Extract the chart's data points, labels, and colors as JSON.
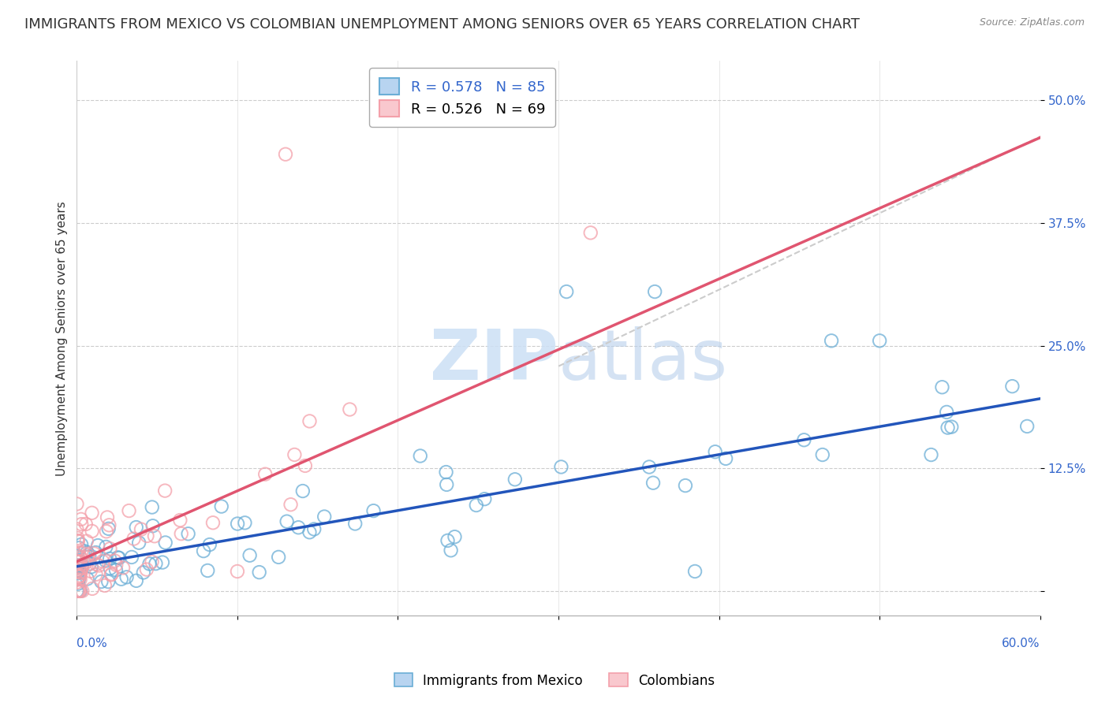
{
  "title": "IMMIGRANTS FROM MEXICO VS COLOMBIAN UNEMPLOYMENT AMONG SENIORS OVER 65 YEARS CORRELATION CHART",
  "source": "Source: ZipAtlas.com",
  "ylabel": "Unemployment Among Seniors over 65 years",
  "yticks": [
    0.0,
    0.125,
    0.25,
    0.375,
    0.5
  ],
  "ytick_labels": [
    "",
    "12.5%",
    "25.0%",
    "37.5%",
    "50.0%"
  ],
  "xlim": [
    0.0,
    0.6
  ],
  "ylim": [
    -0.025,
    0.54
  ],
  "background_color": "#ffffff",
  "grid_color": "#cccccc",
  "title_fontsize": 13,
  "axis_label_fontsize": 11,
  "tick_fontsize": 11,
  "mexico_color": "#6baed6",
  "mexico_line_color": "#2255bb",
  "colombian_color": "#f4a0aa",
  "colombian_line_color": "#e05570",
  "dash_color": "#cccccc",
  "mexico_slope": 0.285,
  "mexico_intercept": 0.025,
  "colombian_slope": 0.72,
  "colombian_intercept": 0.03,
  "dash_slope": 0.78,
  "dash_intercept": -0.005,
  "dash_xstart": 0.3,
  "watermark_zip_color": "#cce0f5",
  "watermark_atlas_color": "#b8d0ec",
  "legend1_label": "R = 0.578   N = 85",
  "legend2_label": "R = 0.526   N = 69",
  "bottom_legend1": "Immigrants from Mexico",
  "bottom_legend2": "Colombians"
}
